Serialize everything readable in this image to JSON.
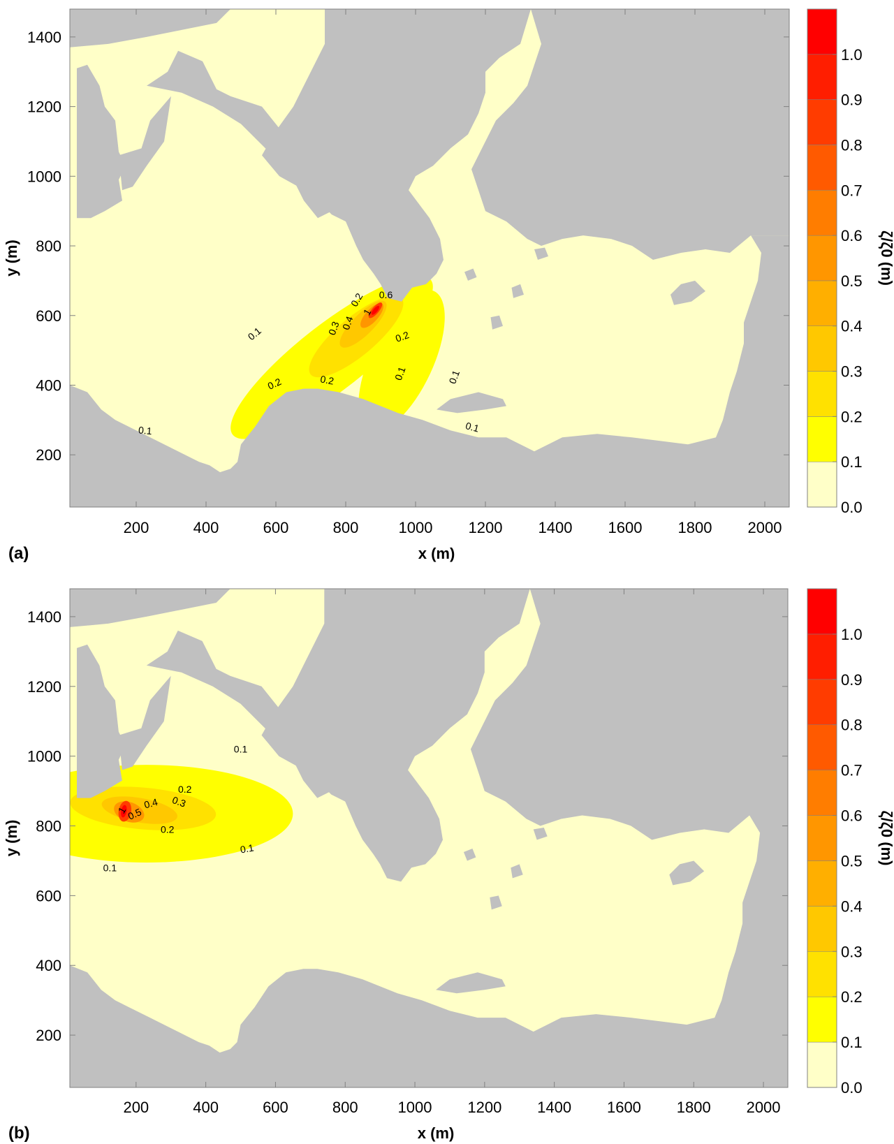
{
  "chart_data": [
    {
      "type": "heatmap",
      "panel_label": "(a)",
      "xlabel": "x (m)",
      "ylabel": "y (m)",
      "xlim": [
        10,
        2070
      ],
      "ylim": [
        50,
        1480
      ],
      "xticks": [
        "200",
        "400",
        "600",
        "800",
        "1000",
        "1200",
        "1400",
        "1600",
        "1800",
        "2000"
      ],
      "yticks": [
        "200",
        "400",
        "600",
        "800",
        "1000",
        "1200",
        "1400"
      ],
      "colorbar": {
        "label": "ζ/ζ0 (m)",
        "levels": [
          "0.0",
          "0.1",
          "0.2",
          "0.3",
          "0.4",
          "0.5",
          "0.6",
          "0.7",
          "0.8",
          "0.9",
          "1.0"
        ],
        "colors": [
          "#ffffc8",
          "#ffff00",
          "#ffe100",
          "#ffc800",
          "#ffaf00",
          "#ff9600",
          "#ff7d00",
          "#ff5a00",
          "#ff3c00",
          "#ff1e00",
          "#ff0000"
        ]
      },
      "contour_labels": [
        {
          "text": "0.1",
          "x": 545,
          "y": 540,
          "rotate": -40
        },
        {
          "text": "0.2",
          "x": 840,
          "y": 640,
          "rotate": -60
        },
        {
          "text": "0.6",
          "x": 915,
          "y": 650,
          "rotate": 0
        },
        {
          "text": "0.3",
          "x": 775,
          "y": 560,
          "rotate": -70
        },
        {
          "text": "0.4",
          "x": 815,
          "y": 575,
          "rotate": -70
        },
        {
          "text": "1",
          "x": 870,
          "y": 605,
          "rotate": -60
        },
        {
          "text": "0.2",
          "x": 965,
          "y": 530,
          "rotate": -20
        },
        {
          "text": "0.1",
          "x": 965,
          "y": 430,
          "rotate": -70
        },
        {
          "text": "0.1",
          "x": 1120,
          "y": 420,
          "rotate": -70
        },
        {
          "text": "0.2",
          "x": 600,
          "y": 395,
          "rotate": -25
        },
        {
          "text": "0.2",
          "x": 745,
          "y": 405,
          "rotate": 10
        },
        {
          "text": "0.1",
          "x": 225,
          "y": 260,
          "rotate": 5
        },
        {
          "text": "0.1",
          "x": 1160,
          "y": 270,
          "rotate": 15
        }
      ]
    },
    {
      "type": "heatmap",
      "panel_label": "(b)",
      "xlabel": "x (m)",
      "ylabel": "y (m)",
      "xlim": [
        10,
        2070
      ],
      "ylim": [
        50,
        1480
      ],
      "xticks": [
        "200",
        "400",
        "600",
        "800",
        "1000",
        "1200",
        "1400",
        "1600",
        "1800",
        "2000"
      ],
      "yticks": [
        "200",
        "400",
        "600",
        "800",
        "1000",
        "1200",
        "1400"
      ],
      "colorbar": {
        "label": "ζ/ζ0 (m)",
        "levels": [
          "0.0",
          "0.1",
          "0.2",
          "0.3",
          "0.4",
          "0.5",
          "0.6",
          "0.7",
          "0.8",
          "0.9",
          "1.0"
        ],
        "colors": [
          "#ffffc8",
          "#ffff00",
          "#ffe100",
          "#ffc800",
          "#ffaf00",
          "#ff9600",
          "#ff7d00",
          "#ff5a00",
          "#ff3c00",
          "#ff1e00",
          "#ff0000"
        ]
      },
      "contour_labels": [
        {
          "text": "0.1",
          "x": 500,
          "y": 1010,
          "rotate": 0
        },
        {
          "text": "0.2",
          "x": 340,
          "y": 895,
          "rotate": 0
        },
        {
          "text": "0.3",
          "x": 320,
          "y": 860,
          "rotate": 20
        },
        {
          "text": "0.4",
          "x": 245,
          "y": 855,
          "rotate": -15
        },
        {
          "text": "0.5",
          "x": 200,
          "y": 825,
          "rotate": -25
        },
        {
          "text": "1",
          "x": 168,
          "y": 840,
          "rotate": -60
        },
        {
          "text": "0.2",
          "x": 290,
          "y": 780,
          "rotate": 0
        },
        {
          "text": "0.1",
          "x": 520,
          "y": 725,
          "rotate": -10
        },
        {
          "text": "0.1",
          "x": 125,
          "y": 670,
          "rotate": 0
        }
      ]
    }
  ]
}
